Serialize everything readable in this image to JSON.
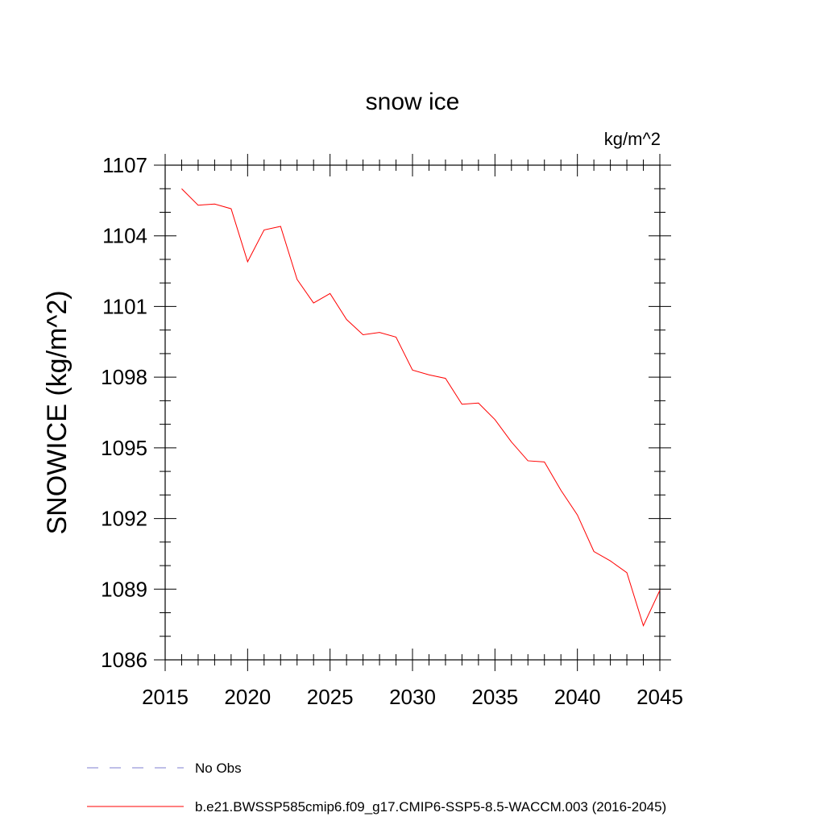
{
  "chart_data": {
    "type": "line",
    "title": "snow ice",
    "units_label": "kg/m^2",
    "ylabel": "SNOWICE  (kg/m^2)",
    "xlabel": "",
    "xlim": [
      2015,
      2045
    ],
    "ylim": [
      1086,
      1107
    ],
    "x_ticks": [
      2015,
      2020,
      2025,
      2030,
      2035,
      2040,
      2045
    ],
    "x_tick_labels": [
      "2015",
      "2020",
      "2025",
      "2030",
      "2035",
      "2040",
      "2045"
    ],
    "y_ticks": [
      1086,
      1089,
      1092,
      1095,
      1098,
      1101,
      1104,
      1107
    ],
    "y_tick_labels": [
      "1086",
      "1089",
      "1092",
      "1095",
      "1098",
      "1101",
      "1104",
      "1107"
    ],
    "grid": false,
    "legend": {
      "placement": "bottom",
      "entries": [
        {
          "label": "No Obs",
          "color": "#7f7fd0",
          "style": "dashed"
        },
        {
          "label": "b.e21.BWSSP585cmip6.f09_g17.CMIP6-SSP5-8.5-WACCM.003 (2016-2045)",
          "color": "#ff0000",
          "style": "solid"
        }
      ]
    },
    "series": [
      {
        "color": "#ff0000",
        "x": [
          2016,
          2017,
          2018,
          2019,
          2020,
          2021,
          2022,
          2023,
          2024,
          2025,
          2026,
          2027,
          2028,
          2029,
          2030,
          2031,
          2032,
          2033,
          2034,
          2035,
          2036,
          2037,
          2038,
          2039,
          2040,
          2041,
          2042,
          2043,
          2044,
          2045
        ],
        "values": [
          1106.0,
          1105.3,
          1105.35,
          1105.15,
          1102.9,
          1104.25,
          1104.4,
          1102.15,
          1101.15,
          1101.55,
          1100.45,
          1099.8,
          1099.9,
          1099.7,
          1098.3,
          1098.1,
          1097.95,
          1096.85,
          1096.9,
          1096.2,
          1095.25,
          1094.45,
          1094.4,
          1093.2,
          1092.15,
          1090.6,
          1090.2,
          1089.7,
          1087.45,
          1088.95
        ]
      }
    ]
  }
}
